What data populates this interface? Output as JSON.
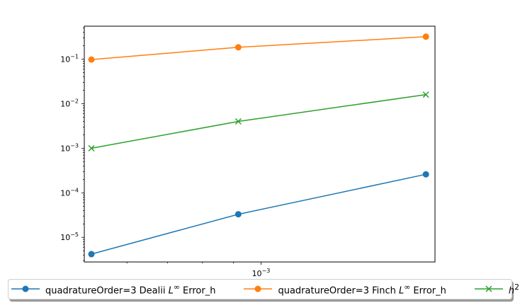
{
  "chart_data": {
    "type": "line",
    "x_scale": "log",
    "y_scale": "log",
    "x": [
      0.000524,
      0.000917,
      0.001874
    ],
    "xlim": [
      0.00051,
      0.00194
    ],
    "ylim": [
      2.8e-06,
      0.55
    ],
    "x_ticks": [
      {
        "value": 0.001,
        "base": "10",
        "exp": "−3"
      }
    ],
    "y_ticks": [
      {
        "value": 1e-05,
        "base": "10",
        "exp": "−5"
      },
      {
        "value": 0.0001,
        "base": "10",
        "exp": "−4"
      },
      {
        "value": 0.001,
        "base": "10",
        "exp": "−3"
      },
      {
        "value": 0.01,
        "base": "10",
        "exp": "−2"
      },
      {
        "value": 0.1,
        "base": "10",
        "exp": "−1"
      }
    ],
    "series": [
      {
        "name": "quadratureOrder=3 Dealii L∞ Error_h",
        "label_pre": "quadratureOrder=3 Dealii ",
        "label_math": "L",
        "label_sup": "∞",
        "label_post": " Error_h",
        "color": "#1f77b4",
        "marker": "circle",
        "values": [
          4.2e-06,
          3.3e-05,
          0.00026
        ]
      },
      {
        "name": "quadratureOrder=3 Finch L∞ Error_h",
        "label_pre": "quadratureOrder=3 Finch ",
        "label_math": "L",
        "label_sup": "∞",
        "label_post": " Error_h",
        "color": "#ff7f0e",
        "marker": "circle",
        "values": [
          0.098,
          0.185,
          0.32
        ]
      },
      {
        "name": "h2",
        "label_pre": "",
        "label_math": "h",
        "label_sup": "2",
        "label_post": "",
        "color": "#2ca02c",
        "marker": "x",
        "values": [
          0.001,
          0.004,
          0.016
        ]
      }
    ],
    "legend_position": "bottom-center",
    "grid": false
  }
}
